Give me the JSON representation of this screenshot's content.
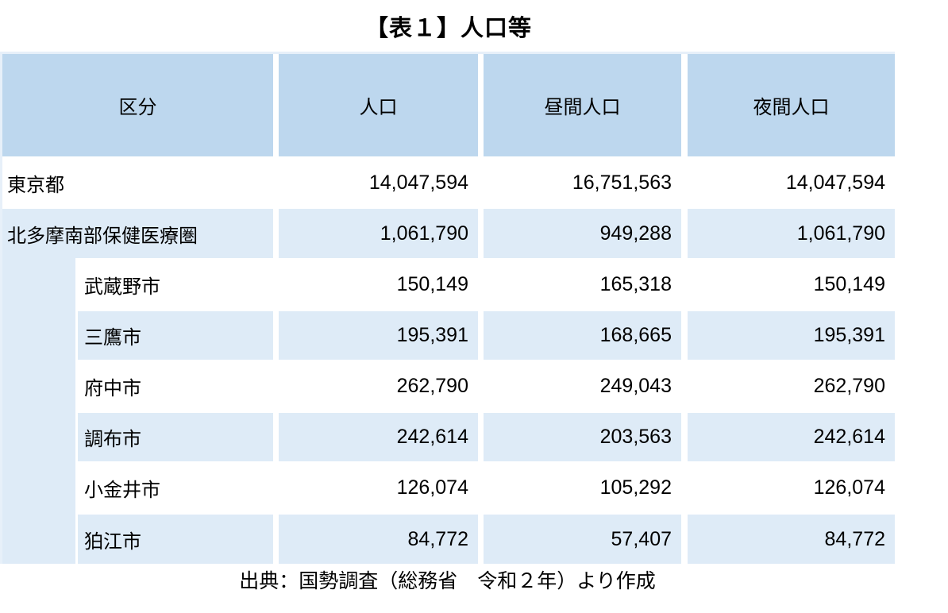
{
  "title": "【表１】人口等",
  "source_note": "出典：国勢調査（総務省　令和２年）より作成",
  "colors": {
    "header_bg": "#BDD7EE",
    "stripe_bg": "#DEEBF7",
    "table_edge": "#E7F0F9",
    "text": "#000000",
    "background": "#FFFFFF"
  },
  "table": {
    "headers": {
      "category": "区分",
      "population": "人口",
      "daytime": "昼間人口",
      "nighttime": "夜間人口"
    },
    "rows": [
      {
        "label": "東京都",
        "indent": false,
        "population": "14,047,594",
        "daytime": "16,751,563",
        "nighttime": "14,047,594"
      },
      {
        "label": "北多摩南部保健医療圏",
        "indent": false,
        "population": "1,061,790",
        "daytime": "949,288",
        "nighttime": "1,061,790"
      },
      {
        "label": "武蔵野市",
        "indent": true,
        "population": "150,149",
        "daytime": "165,318",
        "nighttime": "150,149"
      },
      {
        "label": "三鷹市",
        "indent": true,
        "population": "195,391",
        "daytime": "168,665",
        "nighttime": "195,391"
      },
      {
        "label": "府中市",
        "indent": true,
        "population": "262,790",
        "daytime": "249,043",
        "nighttime": "262,790"
      },
      {
        "label": "調布市",
        "indent": true,
        "population": "242,614",
        "daytime": "203,563",
        "nighttime": "242,614"
      },
      {
        "label": "小金井市",
        "indent": true,
        "population": "126,074",
        "daytime": "105,292",
        "nighttime": "126,074"
      },
      {
        "label": "狛江市",
        "indent": true,
        "population": "84,772",
        "daytime": "57,407",
        "nighttime": "84,772"
      }
    ]
  }
}
